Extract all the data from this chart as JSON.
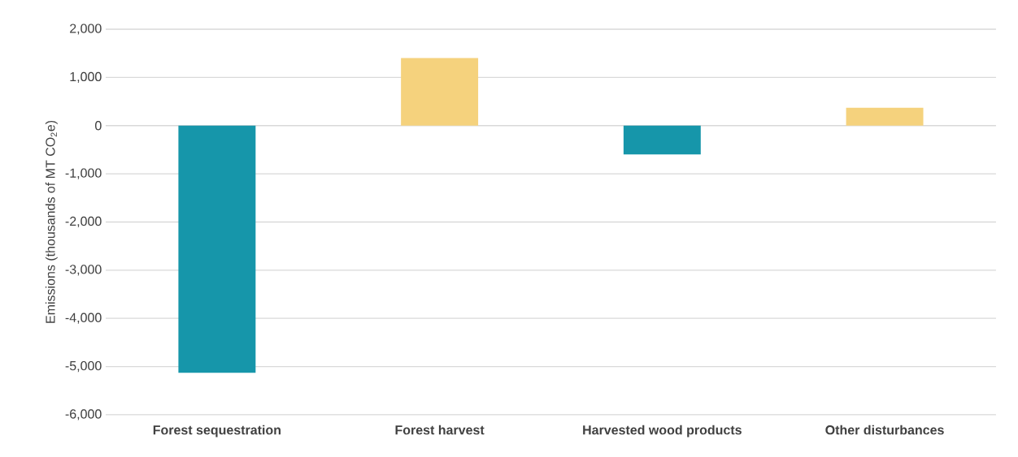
{
  "chart_data": {
    "type": "bar",
    "categories": [
      "Forest sequestration",
      "Forest harvest",
      "Harvested wood products",
      "Other disturbances"
    ],
    "values": [
      -5130,
      1400,
      -600,
      370
    ],
    "colors": [
      "#1696aa",
      "#f5d27d",
      "#1696aa",
      "#f5d27d"
    ],
    "ylabel": "Emissions (thousands of MT CO$_{2}$e)",
    "ylim": [
      -6000,
      2000
    ],
    "yticks": [
      {
        "value": -6000,
        "label": "-6,000"
      },
      {
        "value": -5000,
        "label": "-5,000"
      },
      {
        "value": -4000,
        "label": "-4,000"
      },
      {
        "value": -3000,
        "label": "-3,000"
      },
      {
        "value": -2000,
        "label": "-2,000"
      },
      {
        "value": -1000,
        "label": "-1,000"
      },
      0,
      {
        "value": 1000,
        "label": "1,000"
      },
      {
        "value": 2000,
        "label": "2,000"
      }
    ],
    "grid": "y"
  }
}
